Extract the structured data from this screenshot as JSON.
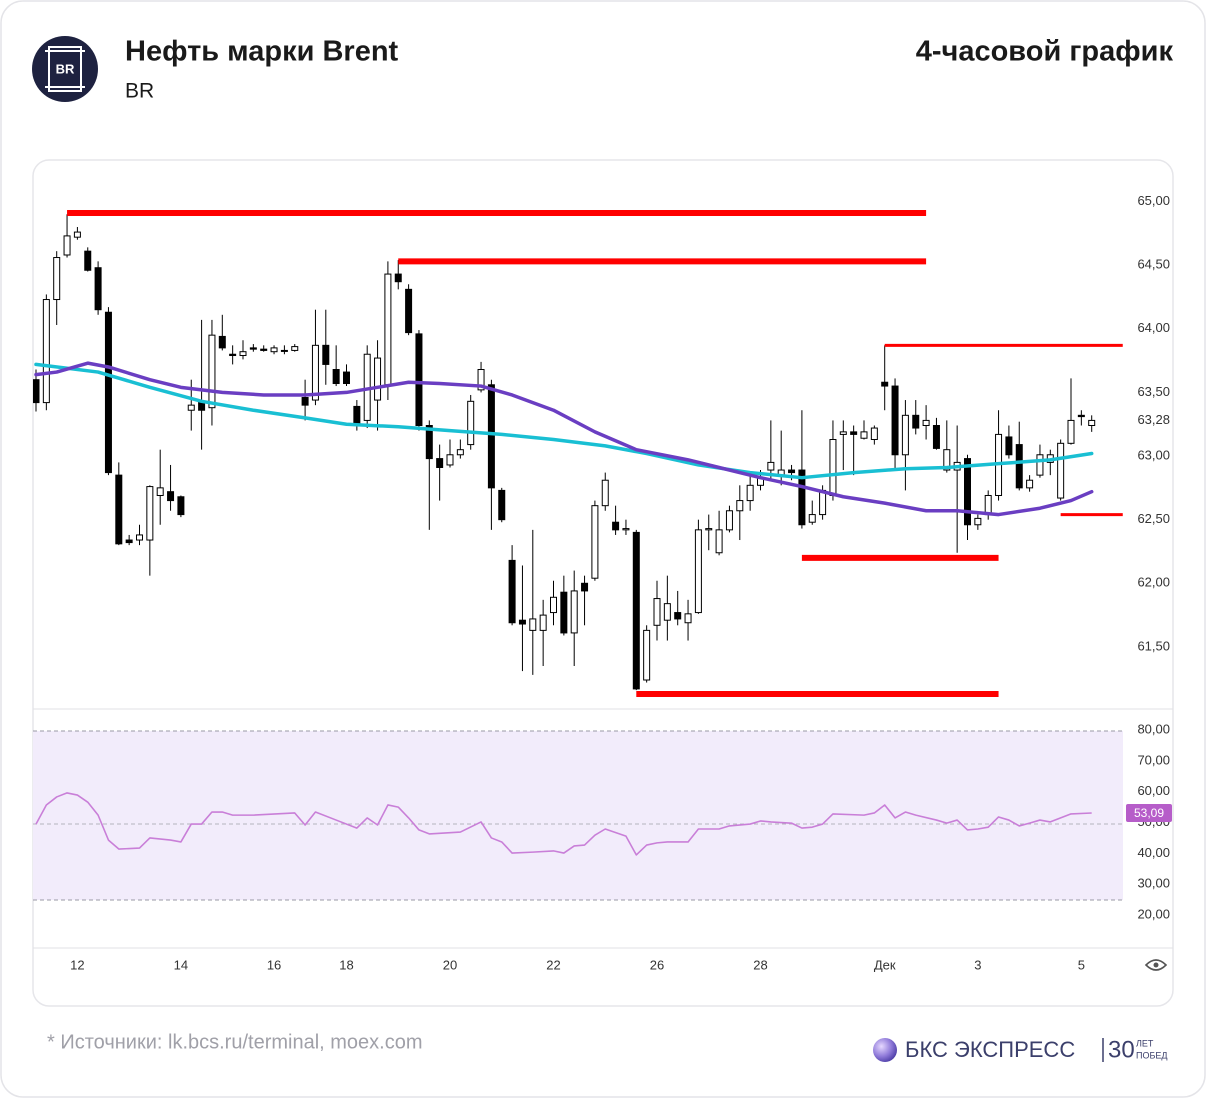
{
  "header": {
    "title": "Нефть марки Brent",
    "ticker": "BR",
    "logo": "BR",
    "period": "4-часовой график"
  },
  "chart_data": [
    {
      "type": "candlestick",
      "categories": [
        null,
        null,
        null,
        null,
        "12",
        null,
        null,
        null,
        null,
        null,
        null,
        null,
        null,
        null,
        "14",
        null,
        null,
        null,
        null,
        null,
        null,
        null,
        null,
        "16",
        null,
        null,
        null,
        null,
        null,
        null,
        "18",
        null,
        null,
        null,
        null,
        null,
        null,
        null,
        null,
        null,
        "20",
        null,
        null,
        null,
        null,
        null,
        null,
        null,
        null,
        null,
        "22",
        null,
        null,
        null,
        null,
        null,
        null,
        null,
        null,
        null,
        "26",
        null,
        null,
        null,
        null,
        null,
        null,
        null,
        null,
        null,
        "28",
        null,
        null,
        null,
        null,
        null,
        null,
        null,
        null,
        null,
        null,
        null,
        "Дек",
        null,
        null,
        null,
        null,
        null,
        null,
        null,
        null,
        "3",
        null,
        null,
        null,
        null,
        null,
        null,
        null,
        null,
        null,
        "5",
        null
      ],
      "open": [
        63.6,
        63.42,
        64.23,
        64.58,
        64.72,
        64.61,
        64.48,
        64.13,
        62.85,
        62.34,
        62.34,
        62.34,
        62.69,
        62.72,
        62.68,
        63.36,
        63.43,
        63.38,
        63.94,
        63.8,
        63.79,
        63.85,
        63.84,
        63.82,
        63.83,
        63.83,
        63.46,
        63.44,
        63.87,
        63.68,
        63.66,
        63.39,
        63.28,
        63.44,
        63.56,
        64.43,
        64.31,
        63.96,
        63.24,
        62.98,
        62.93,
        63.01,
        63.09,
        63.52,
        63.56,
        62.73,
        62.18,
        61.71,
        61.63,
        61.63,
        61.77,
        61.93,
        61.61,
        62.0,
        62.04,
        62.61,
        62.48,
        62.42,
        62.4,
        61.24,
        61.67,
        61.71,
        61.77,
        61.69,
        61.77,
        62.42,
        62.24,
        62.42,
        62.57,
        62.65,
        62.77,
        62.89,
        62.85,
        62.89,
        62.89,
        62.48,
        62.54,
        62.69,
        63.17,
        63.19,
        63.14,
        63.13,
        63.58,
        63.55,
        63.01,
        63.32,
        63.24,
        63.24,
        62.89,
        62.89,
        62.98,
        62.46,
        62.54,
        62.69,
        63.15,
        63.09,
        62.75,
        62.85,
        62.95,
        62.67,
        63.1,
        63.32,
        63.24
      ],
      "high": [
        63.68,
        64.27,
        64.61,
        64.9,
        64.8,
        64.64,
        64.53,
        64.17,
        62.95,
        62.38,
        62.46,
        62.77,
        63.05,
        62.93,
        62.69,
        63.6,
        64.07,
        64.07,
        64.11,
        63.87,
        63.91,
        63.88,
        63.87,
        63.87,
        63.87,
        63.88,
        63.6,
        64.15,
        64.15,
        63.87,
        63.72,
        63.44,
        63.87,
        63.91,
        64.53,
        64.54,
        64.35,
        63.99,
        63.28,
        63.09,
        63.13,
        63.13,
        63.48,
        63.74,
        63.6,
        62.75,
        62.3,
        62.14,
        62.42,
        61.87,
        62.02,
        62.06,
        62.1,
        62.06,
        62.65,
        62.87,
        62.61,
        62.5,
        62.42,
        61.67,
        62.02,
        62.06,
        61.94,
        61.87,
        62.5,
        62.54,
        62.57,
        62.61,
        62.77,
        62.85,
        62.89,
        63.28,
        63.2,
        62.93,
        63.36,
        62.65,
        62.77,
        63.28,
        63.28,
        63.24,
        63.28,
        63.24,
        63.87,
        63.61,
        63.44,
        63.44,
        63.4,
        63.3,
        63.28,
        63.24,
        63.01,
        62.54,
        62.73,
        63.36,
        63.24,
        63.27,
        62.85,
        63.09,
        63.05,
        63.13,
        63.61,
        63.36,
        63.32
      ],
      "low": [
        63.35,
        63.36,
        64.03,
        64.56,
        64.7,
        64.45,
        64.11,
        62.85,
        62.3,
        62.3,
        62.3,
        62.06,
        62.46,
        62.57,
        62.52,
        63.2,
        63.05,
        63.24,
        63.83,
        63.72,
        63.76,
        63.82,
        63.82,
        63.8,
        63.8,
        63.82,
        63.28,
        63.4,
        63.56,
        63.55,
        63.55,
        63.2,
        63.22,
        63.2,
        63.44,
        64.31,
        63.95,
        63.2,
        62.42,
        62.65,
        62.91,
        62.98,
        63.05,
        63.5,
        62.42,
        62.48,
        61.67,
        61.31,
        61.28,
        61.35,
        61.67,
        61.59,
        61.35,
        61.67,
        62.02,
        62.57,
        62.38,
        62.38,
        61.16,
        61.22,
        61.55,
        61.55,
        61.67,
        61.55,
        61.76,
        62.26,
        62.22,
        62.4,
        62.34,
        62.57,
        62.73,
        62.81,
        62.77,
        62.81,
        62.43,
        62.46,
        62.5,
        62.65,
        62.89,
        62.85,
        63.13,
        63.09,
        63.36,
        62.89,
        62.73,
        63.17,
        63.13,
        63.05,
        62.87,
        62.24,
        62.34,
        62.42,
        62.5,
        62.65,
        62.98,
        62.73,
        62.72,
        62.83,
        62.85,
        62.65,
        63.09,
        63.24,
        63.19
      ],
      "close": [
        63.42,
        64.23,
        64.56,
        64.73,
        64.76,
        64.46,
        64.15,
        62.87,
        62.31,
        62.32,
        62.38,
        62.76,
        62.75,
        62.65,
        62.54,
        63.4,
        63.36,
        63.95,
        63.85,
        63.79,
        63.82,
        63.84,
        63.83,
        63.85,
        63.83,
        63.86,
        63.4,
        63.87,
        63.72,
        63.57,
        63.57,
        63.24,
        63.8,
        63.77,
        64.43,
        64.37,
        63.97,
        63.24,
        62.98,
        62.91,
        63.01,
        63.05,
        63.43,
        63.68,
        62.75,
        62.5,
        61.69,
        61.68,
        61.72,
        61.75,
        61.89,
        61.61,
        61.94,
        61.94,
        62.61,
        62.81,
        62.42,
        62.43,
        61.17,
        61.63,
        61.88,
        61.84,
        61.72,
        61.76,
        62.42,
        62.43,
        62.42,
        62.57,
        62.65,
        62.77,
        62.83,
        62.95,
        62.89,
        62.87,
        62.46,
        62.54,
        62.73,
        63.13,
        63.19,
        63.17,
        63.19,
        63.22,
        63.55,
        63.01,
        63.32,
        63.22,
        63.28,
        63.06,
        63.05,
        62.95,
        62.46,
        62.51,
        62.69,
        63.17,
        63.01,
        62.75,
        62.81,
        63.01,
        63.01,
        63.1,
        63.28,
        63.31,
        63.28
      ],
      "up_color": "#ffffff",
      "down_color": "#000000",
      "ylim": [
        61.02,
        65.13
      ],
      "yticks": [
        {
          "value": 65,
          "label": "65,00"
        },
        {
          "value": 64.5,
          "label": "64,50"
        },
        {
          "value": 64,
          "label": "64,00"
        },
        {
          "value": 63.5,
          "label": "63,50"
        },
        {
          "value": 63,
          "label": "63,00"
        },
        {
          "value": 62.5,
          "label": "62,50"
        },
        {
          "value": 62,
          "label": "62,00"
        },
        {
          "value": 61.5,
          "label": "61,50"
        }
      ],
      "last_price": {
        "value": 63.28,
        "label": "63,28"
      },
      "series": [
        {
          "color": "#19bfd3",
          "x": [
            0,
            6,
            11,
            16,
            21,
            26,
            30,
            35,
            40,
            45,
            50,
            55,
            59,
            64,
            69,
            74,
            79,
            84,
            88,
            93,
            98,
            102
          ],
          "values": [
            63.72,
            63.66,
            63.54,
            63.43,
            63.36,
            63.3,
            63.25,
            63.23,
            63.2,
            63.17,
            63.13,
            63.08,
            63.02,
            62.93,
            62.87,
            62.83,
            62.87,
            62.9,
            62.91,
            62.94,
            62.97,
            63.02
          ]
        },
        {
          "color": "#6a3ec2",
          "x": [
            0,
            2,
            5,
            7,
            11,
            14,
            18,
            22,
            26,
            30,
            33,
            36,
            39,
            43,
            46,
            50,
            54,
            58,
            63,
            66,
            70,
            74,
            78,
            82,
            86,
            89,
            93,
            97,
            100,
            102
          ],
          "values": [
            63.64,
            63.66,
            63.73,
            63.7,
            63.6,
            63.54,
            63.5,
            63.48,
            63.48,
            63.5,
            63.54,
            63.58,
            63.57,
            63.55,
            63.48,
            63.36,
            63.19,
            63.05,
            62.97,
            62.91,
            62.83,
            62.76,
            62.68,
            62.63,
            62.57,
            62.57,
            62.54,
            62.59,
            62.65,
            62.72
          ]
        }
      ],
      "level_color": "#ff0000",
      "levels": [
        {
          "value": 64.91,
          "from": 3,
          "to": 86,
          "style": "thick"
        },
        {
          "value": 64.53,
          "from": 35,
          "to": 86,
          "style": "thick"
        },
        {
          "value": 63.87,
          "from": 82,
          "to": 105,
          "style": "thin"
        },
        {
          "value": 62.54,
          "from": 99,
          "to": 105,
          "style": "thin"
        },
        {
          "value": 62.2,
          "from": 74,
          "to": 93,
          "style": "thick"
        },
        {
          "value": 61.13,
          "from": 58,
          "to": 93,
          "style": "thick"
        }
      ]
    },
    {
      "type": "line",
      "color": "#c97fd8",
      "x": [
        0,
        1,
        2,
        3,
        4,
        5,
        6,
        7,
        8,
        10,
        11,
        13,
        14,
        15,
        16,
        17,
        18,
        19,
        21,
        25,
        26,
        27,
        29,
        31,
        32,
        33,
        34,
        35,
        36,
        37,
        38,
        41,
        43,
        44,
        45,
        46,
        48,
        50,
        51,
        52,
        53,
        54,
        55,
        57,
        58,
        59,
        60,
        61,
        63,
        64,
        66,
        67,
        69,
        70,
        71,
        73,
        74,
        75,
        76,
        77,
        80,
        81,
        82,
        83,
        84,
        85,
        87,
        88,
        89,
        90,
        91,
        92,
        93,
        94,
        95,
        96,
        97,
        98,
        99,
        100,
        102
      ],
      "values": [
        49.5,
        55.7,
        58.3,
        59.6,
        58.9,
        56.6,
        52.4,
        44.3,
        41.4,
        41.7,
        45.0,
        44.3,
        43.7,
        49.5,
        49.5,
        53.4,
        53.4,
        52.4,
        52.4,
        53.1,
        49.2,
        53.4,
        50.8,
        48.2,
        51.5,
        49.2,
        55.7,
        55.0,
        51.5,
        47.6,
        46.3,
        46.9,
        50.2,
        45.0,
        43.7,
        40.1,
        40.4,
        40.8,
        40.1,
        42.4,
        42.7,
        45.9,
        47.9,
        45.6,
        39.5,
        42.7,
        43.4,
        43.7,
        43.7,
        47.9,
        47.9,
        48.9,
        49.5,
        50.5,
        50.2,
        49.8,
        48.2,
        48.5,
        49.5,
        52.8,
        52.4,
        53.1,
        55.7,
        51.5,
        53.4,
        52.4,
        50.8,
        49.8,
        50.8,
        47.6,
        47.9,
        48.5,
        51.8,
        50.8,
        48.9,
        49.8,
        50.8,
        50.2,
        51.5,
        52.8,
        53.09
      ],
      "ylim": [
        9.3,
        86.5
      ],
      "yticks": [
        {
          "value": 80,
          "label": "80,00"
        },
        {
          "value": 70,
          "label": "70,00"
        },
        {
          "value": 60,
          "label": "60,00"
        },
        {
          "value": 50,
          "label": "50,00"
        },
        {
          "value": 40,
          "label": "40,00"
        },
        {
          "value": 30,
          "label": "30,00"
        },
        {
          "value": 20,
          "label": "20,00"
        }
      ],
      "last": {
        "value": 53.09,
        "label": "53,09",
        "color": "#b65dc9"
      }
    }
  ],
  "footer": {
    "source": "* Источники: lk.bcs.ru/terminal, moex.com",
    "brand": "БКС ЭКСПРЕСС",
    "years": "30",
    "years_word": "ЛЕТ",
    "years_word2": "ПОБЕД"
  }
}
